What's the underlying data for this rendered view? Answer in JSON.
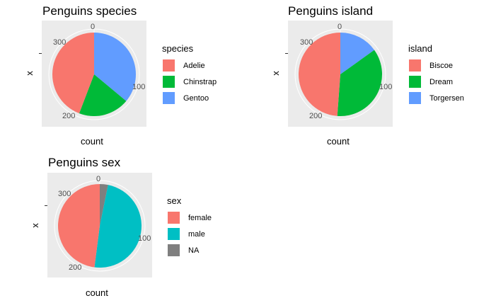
{
  "chart_data": [
    {
      "type": "pie",
      "title": "Penguins species",
      "xlabel": "count",
      "ylabel": "x",
      "ticks": [
        "0",
        "100",
        "200",
        "300"
      ],
      "legend_title": "species",
      "legend_position": "right",
      "total": 344,
      "categories": [
        "Adelie",
        "Chinstrap",
        "Gentoo"
      ],
      "values": [
        152,
        68,
        124
      ],
      "colors": [
        "#F8766D",
        "#00BA38",
        "#619CFF"
      ]
    },
    {
      "type": "pie",
      "title": "Penguins island",
      "xlabel": "count",
      "ylabel": "x",
      "ticks": [
        "0",
        "100",
        "200",
        "300"
      ],
      "legend_title": "island",
      "legend_position": "right",
      "total": 344,
      "categories": [
        "Biscoe",
        "Dream",
        "Torgersen"
      ],
      "values": [
        168,
        124,
        52
      ],
      "colors": [
        "#F8766D",
        "#00BA38",
        "#619CFF"
      ]
    },
    {
      "type": "pie",
      "title": "Penguins sex",
      "xlabel": "count",
      "ylabel": "x",
      "ticks": [
        "0",
        "100",
        "200",
        "300"
      ],
      "legend_title": "sex",
      "legend_position": "right",
      "total": 344,
      "categories": [
        "female",
        "male",
        "NA"
      ],
      "values": [
        165,
        168,
        11
      ],
      "colors": [
        "#F8766D",
        "#00BFC4",
        "#7F7F7F"
      ]
    }
  ]
}
